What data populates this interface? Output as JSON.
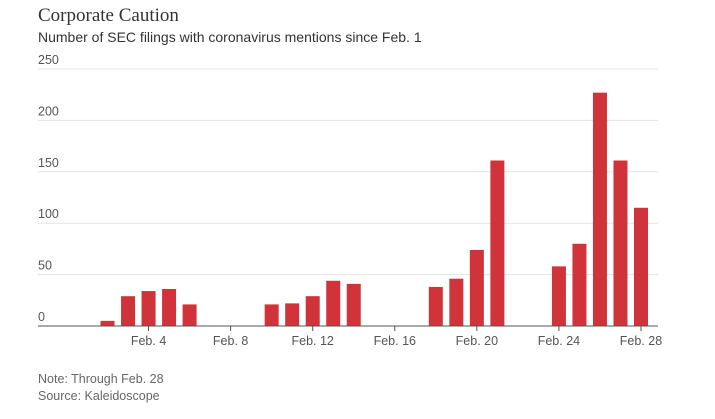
{
  "chart_data": {
    "type": "bar",
    "title": "Corporate Caution",
    "subtitle": "Number of SEC filings with coronavirus mentions since Feb. 1",
    "xlabel": "",
    "ylabel": "",
    "ylim": [
      0,
      250
    ],
    "y_ticks": [
      "0",
      "50",
      "100",
      "150",
      "200",
      "250"
    ],
    "grid": true,
    "x_tick_labels": [
      "Feb. 4",
      "Feb. 8",
      "Feb. 12",
      "Feb. 16",
      "Feb. 20",
      "Feb. 24",
      "Feb. 28"
    ],
    "x_tick_days": [
      4,
      8,
      12,
      16,
      20,
      24,
      28
    ],
    "x_domain": [
      1,
      28
    ],
    "days": [
      1,
      2,
      3,
      4,
      5,
      6,
      7,
      8,
      9,
      10,
      11,
      12,
      13,
      14,
      15,
      16,
      17,
      18,
      19,
      20,
      21,
      22,
      23,
      24,
      25,
      26,
      27,
      28
    ],
    "values": [
      0,
      5,
      29,
      34,
      36,
      21,
      0,
      0,
      0,
      21,
      22,
      29,
      44,
      41,
      0,
      0,
      0,
      38,
      46,
      74,
      161,
      0,
      0,
      58,
      80,
      227,
      161,
      115
    ],
    "bar_color": "#d0343a",
    "note": "Note: Through Feb. 28",
    "source": "Source: Kaleidoscope"
  }
}
